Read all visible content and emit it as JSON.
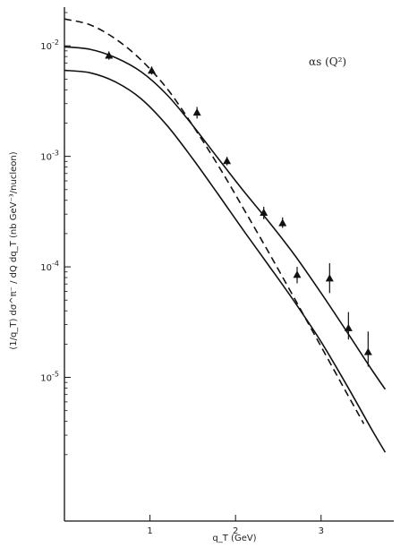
{
  "chart_data": {
    "type": "line",
    "title": "",
    "annotation": "αs (Q²)",
    "xlabel": "q_T  (GeV)",
    "ylabel": "(1/q_T) dσ^π⁻ / dQ dq_T   (nb GeV⁻³/nucleon)",
    "xlim": [
      0,
      3.85
    ],
    "ylim_log10": [
      -6.3,
      -1.65
    ],
    "y_scale": "log",
    "x_ticks": [
      1,
      2,
      3
    ],
    "x_tick_labels": [
      "1",
      "2",
      "3"
    ],
    "y_ticks": [
      0.01,
      0.001,
      0.0001,
      1e-05
    ],
    "y_tick_labels": [
      "10^-2",
      "10^-3",
      "10^-4",
      "10^-5"
    ],
    "grid": false,
    "series": [
      {
        "style": "solid",
        "x": [
          0,
          0.3,
          0.6,
          0.9,
          1.2,
          1.5,
          1.8,
          2.1,
          2.4,
          2.7,
          3.0,
          3.3,
          3.6,
          3.75
        ],
        "y": [
          0.0098,
          0.0093,
          0.0078,
          0.0058,
          0.0036,
          0.0019,
          0.00095,
          0.00048,
          0.00025,
          0.000125,
          5.8e-05,
          2.6e-05,
          1.15e-05,
          7.8e-06
        ]
      },
      {
        "style": "solid",
        "x": [
          0,
          0.3,
          0.6,
          0.9,
          1.2,
          1.5,
          1.8,
          2.1,
          2.4,
          2.7,
          3.0,
          3.3,
          3.6,
          3.75
        ],
        "y": [
          0.006,
          0.0057,
          0.0047,
          0.0033,
          0.0019,
          0.00095,
          0.00045,
          0.00021,
          0.0001,
          4.7e-05,
          2.1e-05,
          8.5e-06,
          3.3e-06,
          2.1e-06
        ]
      },
      {
        "style": "dashed",
        "x": [
          0,
          0.3,
          0.6,
          0.9,
          1.2,
          1.5,
          1.8,
          2.1,
          2.4,
          2.7,
          3.0,
          3.3,
          3.5
        ],
        "y": [
          0.0175,
          0.0155,
          0.0115,
          0.0074,
          0.0041,
          0.0019,
          0.00082,
          0.00033,
          0.00013,
          5e-05,
          1.9e-05,
          7.2e-06,
          3.8e-06
        ]
      }
    ],
    "points": {
      "marker": "triangle",
      "x": [
        0.52,
        1.02,
        1.55,
        1.9,
        2.33,
        2.55,
        2.72,
        3.1,
        3.32,
        3.55
      ],
      "y": [
        0.0082,
        0.006,
        0.0025,
        0.00091,
        0.00031,
        0.00025,
        8.5e-05,
        7.9e-05,
        2.8e-05,
        1.7e-05
      ],
      "y_err_low": [
        0.0075,
        0.0055,
        0.0022,
        0.00083,
        0.00027,
        0.000225,
        7.1e-05,
        5.8e-05,
        2.2e-05,
        1.25e-05
      ],
      "y_err_high": [
        0.0089,
        0.0065,
        0.0028,
        0.00099,
        0.00035,
        0.00028,
        0.0001,
        0.000108,
        3.9e-05,
        2.6e-05
      ]
    }
  }
}
